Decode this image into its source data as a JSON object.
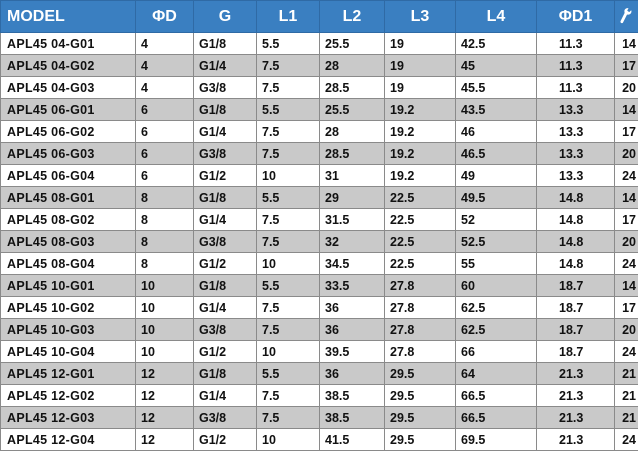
{
  "headers": [
    "MODEL",
    "ΦD",
    "G",
    "L1",
    "L2",
    "L3",
    "L4",
    "ΦD1"
  ],
  "header_icon": "wrench-icon",
  "colors": {
    "header_bg": "#3a7fc1",
    "stripe": "#c9c9c9"
  },
  "rows": [
    [
      "APL45 04-G01",
      "4",
      "G1/8",
      "5.5",
      "25.5",
      "19",
      "42.5",
      "11.3",
      "14"
    ],
    [
      "APL45 04-G02",
      "4",
      "G1/4",
      "7.5",
      "28",
      "19",
      "45",
      "11.3",
      "17"
    ],
    [
      "APL45 04-G03",
      "4",
      "G3/8",
      "7.5",
      "28.5",
      "19",
      "45.5",
      "11.3",
      "20"
    ],
    [
      "APL45 06-G01",
      "6",
      "G1/8",
      "5.5",
      "25.5",
      "19.2",
      "43.5",
      "13.3",
      "14"
    ],
    [
      "APL45 06-G02",
      "6",
      "G1/4",
      "7.5",
      "28",
      "19.2",
      "46",
      "13.3",
      "17"
    ],
    [
      "APL45 06-G03",
      "6",
      "G3/8",
      "7.5",
      "28.5",
      "19.2",
      "46.5",
      "13.3",
      "20"
    ],
    [
      "APL45 06-G04",
      "6",
      "G1/2",
      "10",
      "31",
      "19.2",
      "49",
      "13.3",
      "24"
    ],
    [
      "APL45 08-G01",
      "8",
      "G1/8",
      "5.5",
      "29",
      "22.5",
      "49.5",
      "14.8",
      "14"
    ],
    [
      "APL45 08-G02",
      "8",
      "G1/4",
      "7.5",
      "31.5",
      "22.5",
      "52",
      "14.8",
      "17"
    ],
    [
      "APL45 08-G03",
      "8",
      "G3/8",
      "7.5",
      "32",
      "22.5",
      "52.5",
      "14.8",
      "20"
    ],
    [
      "APL45 08-G04",
      "8",
      "G1/2",
      "10",
      "34.5",
      "22.5",
      "55",
      "14.8",
      "24"
    ],
    [
      "APL45 10-G01",
      "10",
      "G1/8",
      "5.5",
      "33.5",
      "27.8",
      "60",
      "18.7",
      "14"
    ],
    [
      "APL45 10-G02",
      "10",
      "G1/4",
      "7.5",
      "36",
      "27.8",
      "62.5",
      "18.7",
      "17"
    ],
    [
      "APL45 10-G03",
      "10",
      "G3/8",
      "7.5",
      "36",
      "27.8",
      "62.5",
      "18.7",
      "20"
    ],
    [
      "APL45 10-G04",
      "10",
      "G1/2",
      "10",
      "39.5",
      "27.8",
      "66",
      "18.7",
      "24"
    ],
    [
      "APL45 12-G01",
      "12",
      "G1/8",
      "5.5",
      "36",
      "29.5",
      "64",
      "21.3",
      "21"
    ],
    [
      "APL45 12-G02",
      "12",
      "G1/4",
      "7.5",
      "38.5",
      "29.5",
      "66.5",
      "21.3",
      "21"
    ],
    [
      "APL45 12-G03",
      "12",
      "G3/8",
      "7.5",
      "38.5",
      "29.5",
      "66.5",
      "21.3",
      "21"
    ],
    [
      "APL45 12-G04",
      "12",
      "G1/2",
      "10",
      "41.5",
      "29.5",
      "69.5",
      "21.3",
      "24"
    ]
  ]
}
